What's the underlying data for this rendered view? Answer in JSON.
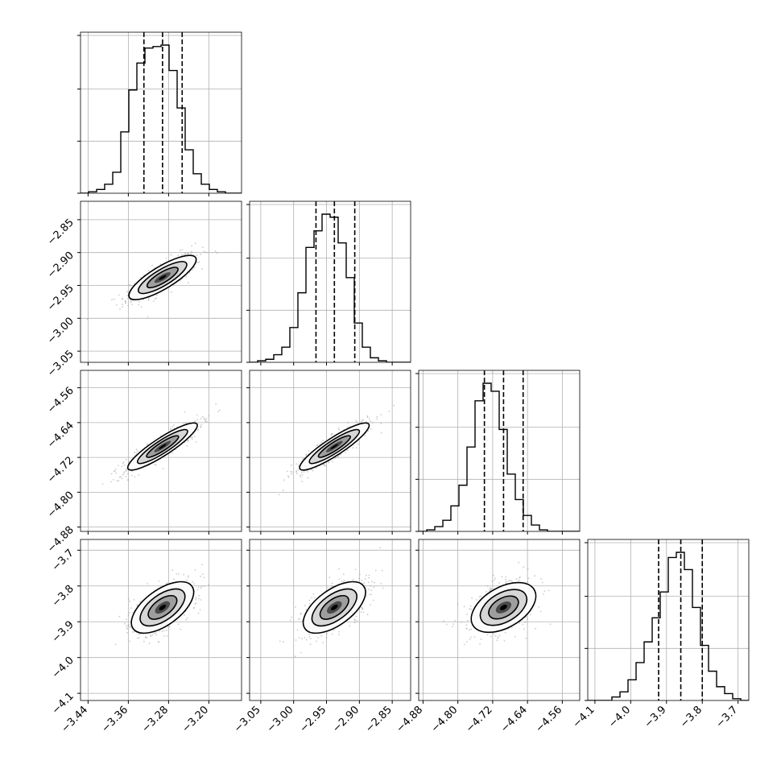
{
  "chart_data": {
    "type": "corner",
    "grid": true,
    "params": [
      {
        "range": [
          -3.455,
          -3.135
        ],
        "ticks": [
          -3.44,
          -3.36,
          -3.28,
          -3.2
        ],
        "tick_labels": [
          "−3.44",
          "−3.36",
          "−3.28",
          "−3.20"
        ],
        "quantiles": [
          -3.329,
          -3.292,
          -3.253
        ],
        "hist": [
          0.0,
          0.01,
          0.025,
          0.06,
          0.14,
          0.41,
          0.69,
          0.87,
          0.97,
          0.98,
          0.99,
          0.82,
          0.57,
          0.29,
          0.13,
          0.06,
          0.025,
          0.01,
          0.0,
          0.0
        ],
        "ellipse": {
          "angle_deg": 31,
          "r1": 48,
          "r2": 14
        },
        "dens": 1200
      },
      {
        "range": [
          -3.067,
          -2.822
        ],
        "ticks": [
          -3.05,
          -3.0,
          -2.95,
          -2.9,
          -2.85
        ],
        "tick_labels": [
          "−3.05",
          "−3.00",
          "−2.95",
          "−2.90",
          "−2.85"
        ],
        "quantiles": [
          -2.966,
          -2.938,
          -2.907
        ],
        "hist": [
          0.0,
          0.01,
          0.02,
          0.05,
          0.1,
          0.23,
          0.46,
          0.76,
          0.87,
          0.98,
          0.96,
          0.79,
          0.56,
          0.26,
          0.1,
          0.03,
          0.01,
          0.0,
          0.0,
          0.0
        ],
        "ellipse": {
          "angle_deg": 33,
          "r1": 51,
          "r2": 11
        },
        "dens": 1250
      },
      {
        "range": [
          -4.89,
          -4.52
        ],
        "ticks": [
          -4.88,
          -4.8,
          -4.72,
          -4.64,
          -4.56
        ],
        "tick_labels": [
          "−4.88",
          "−4.80",
          "−4.72",
          "−4.64",
          "−4.56"
        ],
        "quantiles": [
          -4.739,
          -4.695,
          -4.65
        ],
        "hist": [
          0.0,
          0.01,
          0.03,
          0.07,
          0.16,
          0.29,
          0.53,
          0.82,
          0.93,
          0.88,
          0.64,
          0.36,
          0.2,
          0.1,
          0.04,
          0.01,
          0.0,
          0.0,
          0.0,
          0.0
        ],
        "ellipse": {
          "angle_deg": 36,
          "r1": 45,
          "r2": 22
        },
        "dens": 1300
      },
      {
        "range": [
          -4.12,
          -3.67
        ],
        "ticks": [
          -4.1,
          -4.0,
          -3.9,
          -3.8,
          -3.7
        ],
        "tick_labels": [
          "−4.1",
          "−4.0",
          "−3.9",
          "−3.8",
          "−3.7"
        ],
        "quantiles": [
          -3.922,
          -3.86,
          -3.8
        ],
        "hist": [
          0.0,
          0.0,
          0.0,
          0.02,
          0.05,
          0.12,
          0.22,
          0.34,
          0.48,
          0.63,
          0.83,
          0.86,
          0.76,
          0.54,
          0.32,
          0.17,
          0.08,
          0.04,
          0.01,
          0.0
        ],
        "ellipse": {
          "angle_deg": 30,
          "r1": 44,
          "r2": 25
        },
        "dens": 1200
      }
    ]
  }
}
